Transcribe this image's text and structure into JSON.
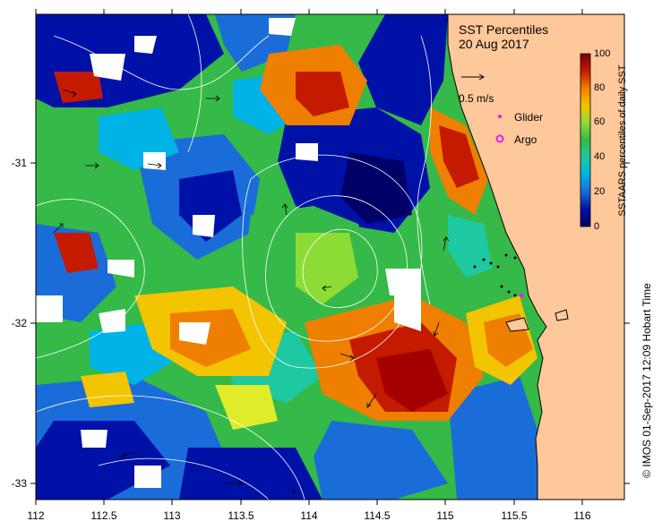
{
  "map": {
    "title": "SST Percentiles",
    "date": "20 Aug 2017",
    "x_ticks": [
      "112",
      "112.5",
      "113",
      "113.5",
      "114",
      "114.5",
      "115",
      "115.5",
      "116"
    ],
    "y_ticks": [
      "-31",
      "-32",
      "-33"
    ],
    "lon_range": [
      112,
      116.3
    ],
    "lat_range": [
      -33.1,
      -30.1
    ],
    "land_color": "#ffc89a"
  },
  "legend": {
    "vector_label": "0.5 m/s",
    "glider_label": "Glider",
    "argo_label": "Argo",
    "marker_color": "#e81ee8"
  },
  "colorbar": {
    "ticks": [
      "100",
      "80",
      "60",
      "40",
      "20",
      "0"
    ],
    "label": "SSTAARS percentiles of daily SST",
    "colors": [
      "#7a0000",
      "#c41a00",
      "#ef7f00",
      "#f3c400",
      "#e0ec2a",
      "#8cdc35",
      "#35b948",
      "#1ec8a0",
      "#00b3e6",
      "#1a6cd9",
      "#0011a8",
      "#000068"
    ]
  },
  "credit": "© IMOS 01-Sep-2017 12:09 Hobart Time"
}
